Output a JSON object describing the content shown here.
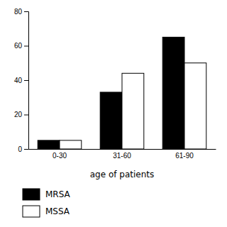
{
  "chart_data": {
    "type": "bar",
    "categories": [
      "0-30",
      "31-60",
      "61-90"
    ],
    "series": [
      {
        "name": "MRSA",
        "color": "#000000",
        "values": [
          5,
          33,
          65
        ]
      },
      {
        "name": "MSSA",
        "color": "#ffffff",
        "values": [
          5,
          44,
          50
        ]
      }
    ],
    "xlabel": "age of patients",
    "ylim": [
      0,
      80
    ],
    "yticks": [
      0,
      20,
      40,
      60,
      80
    ],
    "grid": false,
    "legend": "bottom"
  }
}
